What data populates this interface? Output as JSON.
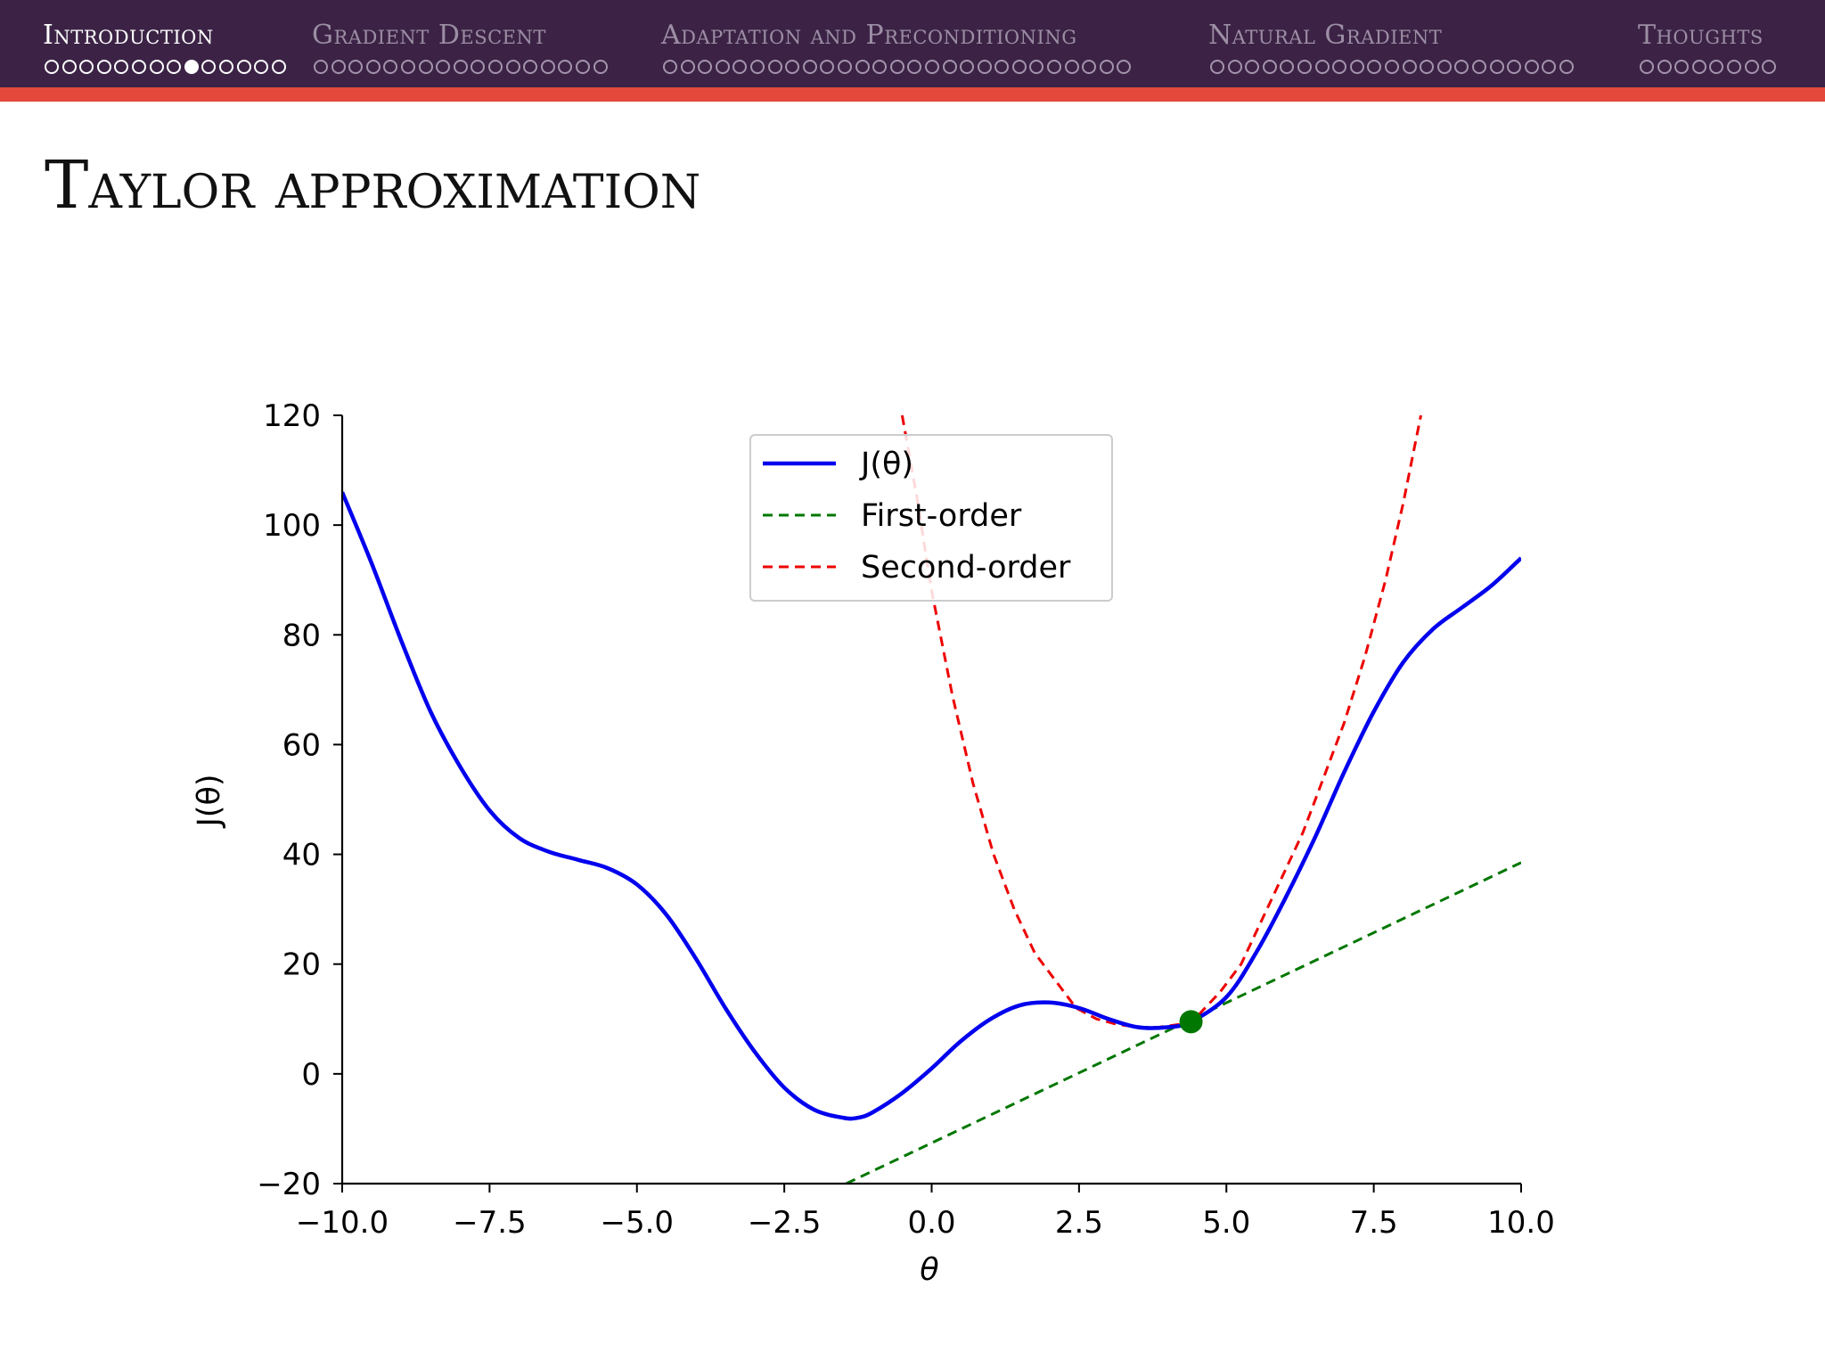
{
  "nav": {
    "sections": [
      {
        "label": "Introduction",
        "dots": 14,
        "current_index": 8,
        "active": true
      },
      {
        "label": "Gradient Descent",
        "dots": 17,
        "current_index": -1,
        "active": false
      },
      {
        "label": "Adaptation and Preconditioning",
        "dots": 27,
        "current_index": -1,
        "active": false
      },
      {
        "label": "Natural Gradient",
        "dots": 21,
        "current_index": -1,
        "active": false
      },
      {
        "label": "Thoughts",
        "dots": 8,
        "current_index": -1,
        "active": false
      }
    ]
  },
  "slide": {
    "title": "Taylor approximation"
  },
  "chart_data": {
    "type": "line",
    "xlabel": "θ",
    "ylabel": "J(θ)",
    "xlim": [
      -10,
      10
    ],
    "ylim": [
      -20,
      120
    ],
    "xticks": [
      -10,
      -7.5,
      -5,
      -2.5,
      0,
      2.5,
      5,
      7.5,
      10
    ],
    "xtick_labels": [
      "−10.0",
      "−7.5",
      "−5.0",
      "−2.5",
      "0.0",
      "2.5",
      "5.0",
      "7.5",
      "10.0"
    ],
    "yticks": [
      -20,
      0,
      20,
      40,
      60,
      80,
      100,
      120
    ],
    "ytick_labels": [
      "−20",
      "0",
      "20",
      "40",
      "60",
      "80",
      "100",
      "120"
    ],
    "legend_position": "upper-center",
    "series": [
      {
        "name": "J(θ)",
        "style": "solid",
        "color": "#0000ee",
        "x": [
          -10,
          -9.5,
          -9,
          -8.5,
          -8,
          -7.5,
          -7,
          -6.5,
          -6,
          -5.5,
          -5,
          -4.5,
          -4,
          -3.5,
          -3,
          -2.5,
          -2,
          -1.5,
          -1.25,
          -1,
          -0.5,
          0,
          0.5,
          1,
          1.5,
          2,
          2.5,
          3,
          3.5,
          4,
          4.4,
          5,
          5.5,
          6,
          6.5,
          7,
          7.5,
          8,
          8.5,
          9,
          9.5,
          10
        ],
        "y": [
          106,
          93,
          79,
          66,
          56,
          48,
          43,
          40.5,
          39,
          37.5,
          34.5,
          29,
          21,
          12,
          4,
          -2.5,
          -6.5,
          -8,
          -8,
          -7,
          -3.5,
          1,
          6,
          10,
          12.5,
          13,
          12,
          10,
          8.5,
          8.5,
          9.5,
          14,
          22,
          32,
          43,
          55,
          66,
          75,
          81,
          85,
          89,
          94
        ]
      },
      {
        "name": "First-order",
        "style": "dashed",
        "color": "#007700",
        "x": [
          -1.45,
          10
        ],
        "y": [
          -20,
          38.5
        ]
      },
      {
        "name": "Second-order",
        "style": "dashed",
        "color": "#ee0000",
        "x": [
          -0.5,
          -0.25,
          0,
          0.35,
          0.7,
          1.05,
          1.4,
          1.75,
          2.1,
          2.45,
          2.8,
          3.15,
          3.5,
          3.85,
          4.2,
          4.4,
          4.55,
          4.9,
          5.25,
          5.6,
          5.95,
          6.3,
          6.65,
          7,
          7.35,
          7.7,
          8,
          8.3
        ],
        "y": [
          120,
          105,
          88,
          69,
          53,
          40,
          30,
          22,
          17,
          12,
          10,
          9,
          8.5,
          8.5,
          9,
          9.5,
          11,
          15,
          20,
          28,
          36,
          44,
          54,
          64,
          76,
          90,
          104,
          120
        ]
      }
    ],
    "points": [
      {
        "x": 4.4,
        "y": 9.5,
        "color": "#007700"
      }
    ]
  }
}
